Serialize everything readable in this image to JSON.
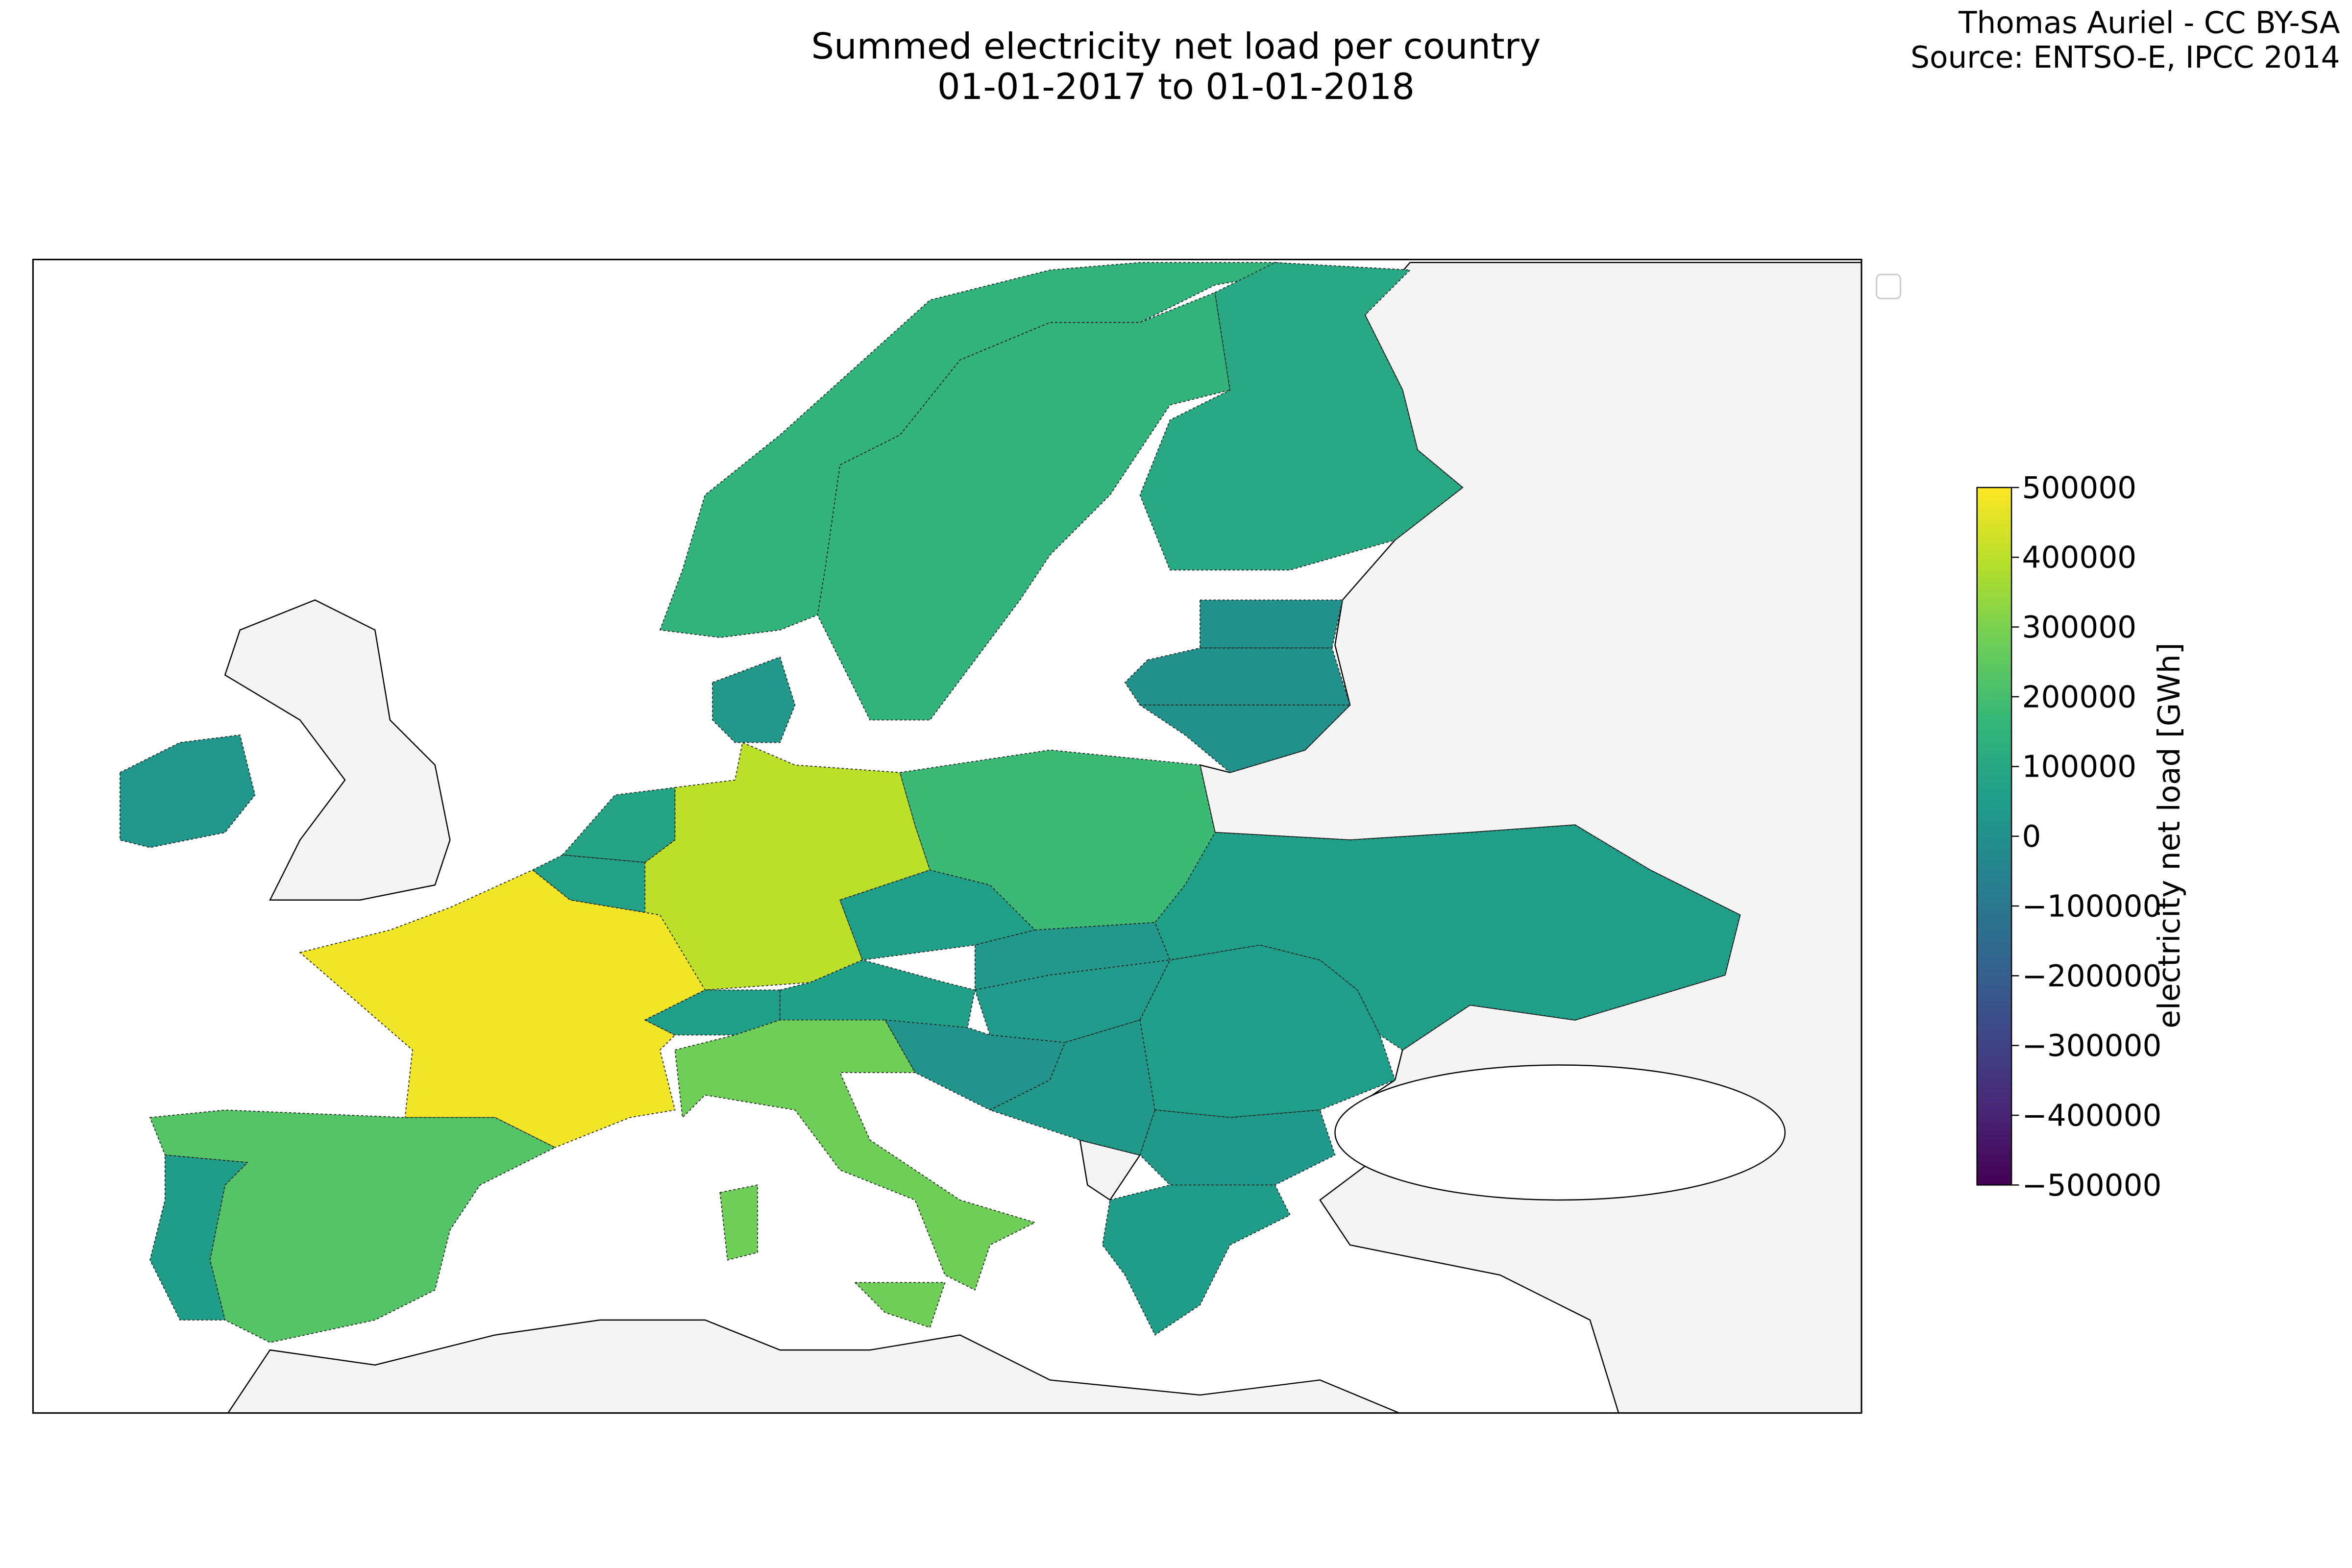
{
  "title": "Summed electricity net load per country",
  "subtitle": "01-01-2017 to 01-01-2018",
  "credit": [
    "Thomas Auriel - CC BY-SA",
    "Source: ENTSO-E, IPCC 2014"
  ],
  "chart_data": {
    "type": "choropleth",
    "colormap": "viridis",
    "values": [
      150000,
      150000,
      100000,
      30000,
      5000,
      5000,
      5000,
      25000,
      80000,
      70000,
      400000,
      480000,
      60000,
      65000,
      60000,
      180000,
      30000,
      40000,
      15000,
      35000,
      55000,
      35000,
      50000,
      60000,
      280000,
      280000,
      280000,
      230000,
      50000
    ],
    "colorbar": {
      "label": "electricity net load [GWh]",
      "lim": [
        -500000,
        500000
      ],
      "ticks": [
        500000,
        400000,
        300000,
        200000,
        100000,
        0,
        {
          "value": -100000,
          "label": "−100000"
        },
        {
          "value": -200000,
          "label": "−200000"
        },
        {
          "value": -300000,
          "label": "−300000"
        },
        {
          "value": -400000,
          "label": "−400000"
        },
        {
          "value": -500000,
          "label": "−500000"
        }
      ]
    }
  }
}
